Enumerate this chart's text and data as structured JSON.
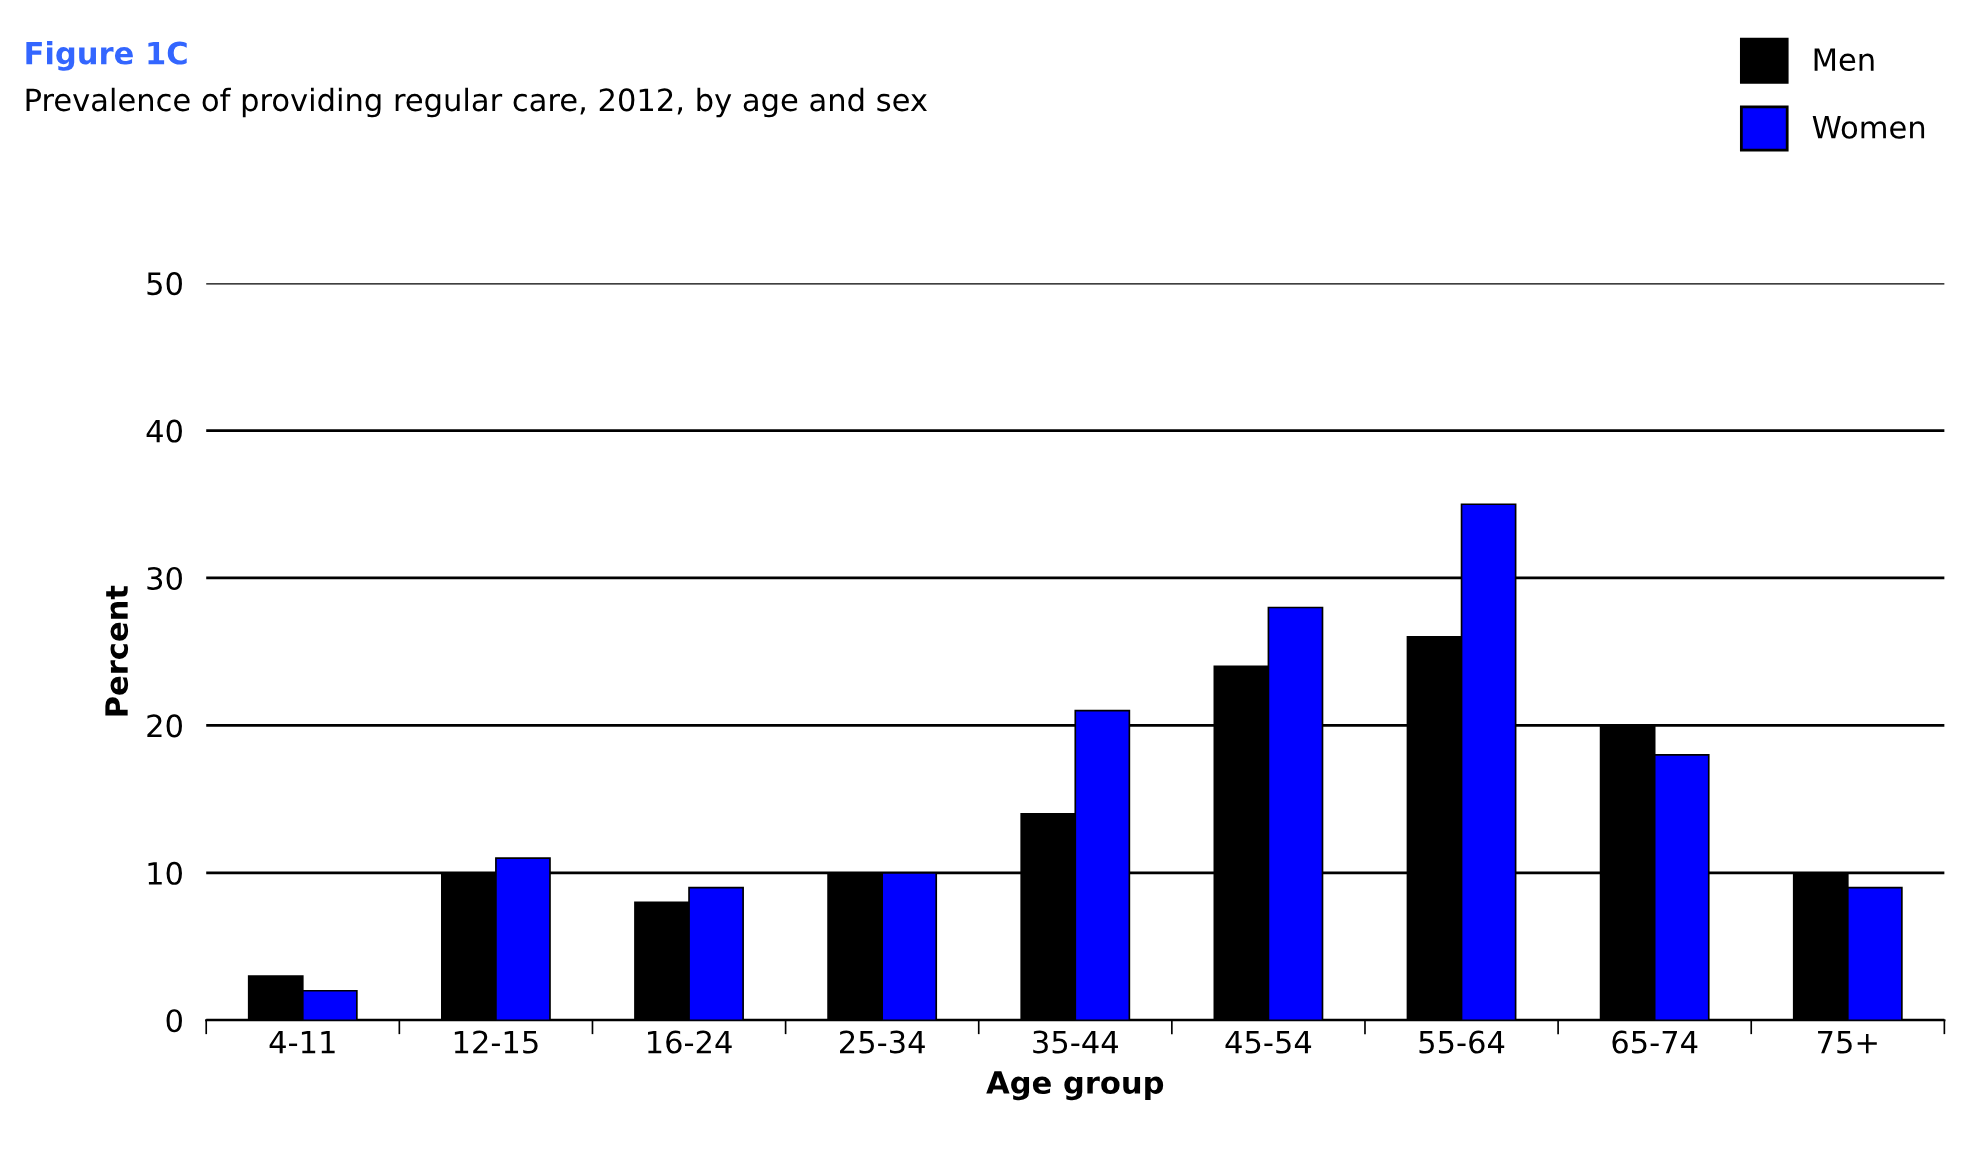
{
  "chart_data": {
    "type": "bar",
    "title": "Figure 1C",
    "subtitle": "Prevalence of providing regular care, 2012, by age and sex",
    "xlabel": "Age group",
    "ylabel": "Percent",
    "categories": [
      "4-11",
      "12-15",
      "16-24",
      "25-34",
      "35-44",
      "45-54",
      "55-64",
      "65-74",
      "75+"
    ],
    "series": [
      {
        "name": "Men",
        "color": "#000000",
        "values": [
          3,
          10,
          8,
          10,
          14,
          24,
          26,
          20,
          10
        ]
      },
      {
        "name": "Women",
        "color": "#0000ff",
        "values": [
          2,
          11,
          9,
          10,
          21,
          28,
          35,
          18,
          9
        ]
      }
    ],
    "ylim": [
      0,
      50
    ],
    "yticks": [
      0,
      10,
      20,
      30,
      40,
      50
    ],
    "grid": "y",
    "legend": "top right"
  }
}
